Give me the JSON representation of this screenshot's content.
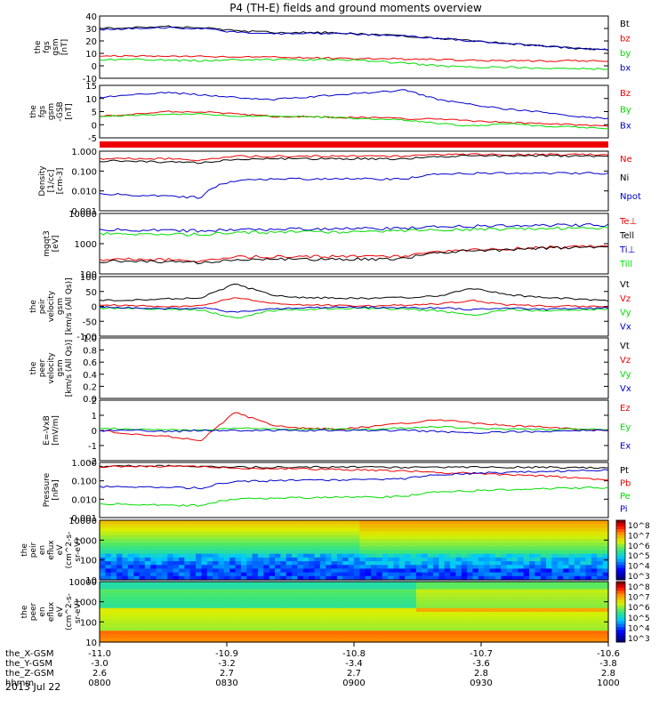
{
  "title": "P4 (TH-E) fields and ground moments overview",
  "date": "2013 Jul 22",
  "orbit": {
    "rows": [
      {
        "label": "the_X-GSM",
        "values": [
          "-11.0",
          "-10.9",
          "-10.8",
          "-10.7",
          "-10.6"
        ]
      },
      {
        "label": "the_Y-GSM",
        "values": [
          "-3.0",
          "-3.2",
          "-3.4",
          "-3.6",
          "-3.8"
        ]
      },
      {
        "label": "the_Z-GSM",
        "values": [
          "2.6",
          "2.7",
          "2.7",
          "2.8",
          "2.8"
        ]
      },
      {
        "label": "hhmm",
        "values": [
          "0800",
          "0830",
          "0900",
          "0930",
          "1000"
        ]
      }
    ]
  },
  "colors": {
    "black": "#000000",
    "red": "#ee0000",
    "green": "#00dd00",
    "blue": "#0000cc"
  },
  "chart_data": [
    {
      "type": "line",
      "ylabel": [
        "the",
        "fgs",
        "gsm",
        "[nT]"
      ],
      "ylim": [
        -10,
        40
      ],
      "ticks": [
        "40",
        "30",
        "20",
        "10",
        "0",
        "-10"
      ],
      "legend": [
        "Bt",
        "bz",
        "by",
        "bx"
      ],
      "series": [
        {
          "name": "Bt",
          "color": "#000000",
          "values": [
            30,
            31,
            31.5,
            31,
            28,
            27,
            27,
            26.5,
            25,
            24,
            22,
            20,
            18,
            16,
            14,
            13
          ]
        },
        {
          "name": "bz",
          "color": "#ee0000",
          "values": [
            8,
            8,
            8,
            7.5,
            7,
            7,
            6.5,
            6,
            6,
            5.5,
            5,
            4.5,
            4,
            4,
            4,
            4
          ]
        },
        {
          "name": "by",
          "color": "#00dd00",
          "values": [
            5,
            5,
            4.5,
            4,
            5,
            5,
            5,
            5,
            4,
            2,
            0,
            -1,
            -1,
            -2,
            -2,
            -3
          ]
        },
        {
          "name": "bx",
          "color": "#0000cc",
          "values": [
            29,
            30,
            30.5,
            30,
            27,
            26,
            26,
            26,
            25,
            24,
            22,
            20,
            18,
            16,
            14,
            13
          ]
        }
      ]
    },
    {
      "type": "line",
      "ylabel": [
        "the",
        "fgs",
        "gsm",
        "-GSB",
        "[nT]"
      ],
      "ylim": [
        -7,
        15
      ],
      "ticks": [
        "15",
        "10",
        "5",
        "0",
        "-5"
      ],
      "legend": [
        "Bz",
        "By",
        "Bx"
      ],
      "series": [
        {
          "name": "Bz",
          "color": "#ee0000",
          "values": [
            2,
            3,
            4,
            4,
            3,
            2,
            2,
            1.5,
            1.5,
            1,
            1,
            0,
            -0.5,
            -1,
            -1.5,
            -2
          ]
        },
        {
          "name": "By",
          "color": "#00dd00",
          "values": [
            2,
            2.5,
            3,
            3,
            2,
            2,
            2,
            1.5,
            1,
            0.5,
            -1,
            -2,
            -1,
            -2,
            -2.5,
            -3
          ]
        },
        {
          "name": "Bx",
          "color": "#0000cc",
          "values": [
            10,
            11,
            12,
            11,
            10,
            9,
            10,
            11,
            12,
            13,
            9,
            7,
            5,
            4,
            2,
            1
          ]
        }
      ]
    },
    {
      "type": "line",
      "ylabel": [
        "Density",
        "[1/cc]",
        "[cm-3]"
      ],
      "ylim": [
        0.001,
        1.5
      ],
      "log": true,
      "ticks": [
        "1.000",
        "0.100",
        "0.010",
        "0.001"
      ],
      "legend": [
        "Ne",
        "Ni",
        "Npot"
      ],
      "series": [
        {
          "name": "Ne",
          "color": "#ee0000",
          "values": [
            0.6,
            0.6,
            0.6,
            0.5,
            0.8,
            0.8,
            0.8,
            0.8,
            0.8,
            0.85,
            1.0,
            1.0,
            1.0,
            1.0,
            1.0,
            1.0
          ]
        },
        {
          "name": "Ni",
          "color": "#000000",
          "values": [
            0.45,
            0.45,
            0.4,
            0.35,
            0.55,
            0.6,
            0.6,
            0.6,
            0.6,
            0.6,
            0.8,
            0.85,
            0.85,
            0.85,
            0.85,
            0.85
          ]
        },
        {
          "name": "Npot",
          "color": "#0000cc",
          "values": [
            0.008,
            0.007,
            0.006,
            0.005,
            0.04,
            0.05,
            0.05,
            0.05,
            0.05,
            0.05,
            0.09,
            0.1,
            0.1,
            0.1,
            0.1,
            0.1
          ]
        }
      ]
    },
    {
      "type": "line",
      "ylabel": [
        "mgqt3",
        "[eV]"
      ],
      "ylim": [
        60,
        10000
      ],
      "log": true,
      "ticks": [
        "10000",
        "1000",
        "100"
      ],
      "legend": [
        "Te⊥",
        "Tell",
        "Ti⊥",
        "Till"
      ],
      "series": [
        {
          "name": "Te⊥",
          "color": "#ee0000",
          "values": [
            200,
            210,
            200,
            180,
            250,
            260,
            260,
            260,
            260,
            280,
            400,
            450,
            500,
            550,
            600,
            650
          ]
        },
        {
          "name": "Tell",
          "color": "#000000",
          "values": [
            170,
            180,
            170,
            150,
            200,
            210,
            210,
            210,
            210,
            230,
            380,
            420,
            470,
            520,
            570,
            620
          ]
        },
        {
          "name": "Ti⊥",
          "color": "#0000cc",
          "values": [
            2500,
            2500,
            2400,
            2300,
            2600,
            2600,
            2700,
            2700,
            2800,
            2900,
            3200,
            3400,
            3500,
            3600,
            3700,
            3800
          ]
        },
        {
          "name": "Till",
          "color": "#00dd00",
          "values": [
            1800,
            1800,
            1700,
            1700,
            2000,
            2000,
            2100,
            2100,
            2200,
            2300,
            2500,
            2600,
            2700,
            2800,
            2900,
            3000
          ]
        }
      ]
    },
    {
      "type": "line",
      "ylabel": [
        "the",
        "peir",
        "velocity",
        "gsm",
        "[km/s (All Qs)]"
      ],
      "ylim": [
        -100,
        100
      ],
      "ticks": [
        "100",
        "50",
        "0",
        "-50",
        "-100"
      ],
      "legend": [
        "Vt",
        "Vz",
        "Vy",
        "Vx"
      ],
      "series": [
        {
          "name": "Vt",
          "color": "#000000",
          "values": [
            20,
            22,
            25,
            30,
            75,
            40,
            30,
            28,
            26,
            30,
            35,
            60,
            40,
            30,
            25,
            20
          ]
        },
        {
          "name": "Vz",
          "color": "#ee0000",
          "values": [
            5,
            3,
            0,
            2,
            30,
            10,
            5,
            3,
            2,
            4,
            8,
            20,
            5,
            2,
            0,
            0
          ]
        },
        {
          "name": "Vy",
          "color": "#00dd00",
          "values": [
            -5,
            -8,
            -10,
            -12,
            -40,
            -15,
            -10,
            -8,
            -6,
            -10,
            -15,
            -30,
            -10,
            -15,
            -12,
            -10
          ]
        },
        {
          "name": "Vx",
          "color": "#0000cc",
          "values": [
            -2,
            -5,
            -8,
            -5,
            -20,
            -8,
            -5,
            -3,
            -3,
            -5,
            -5,
            -10,
            -5,
            -10,
            -8,
            -5
          ]
        }
      ]
    },
    {
      "type": "line",
      "ylabel": [
        "the",
        "peer",
        "velocity",
        "gsm",
        "[km/s (All Qs)]"
      ],
      "ylim": [
        0,
        1
      ],
      "ticks": [
        "1.0",
        "0.8",
        "0.6",
        "0.4",
        "0.2",
        "0.0"
      ],
      "legend": [
        "Vt",
        "Vz",
        "Vy",
        "Vx"
      ],
      "series": []
    },
    {
      "type": "line",
      "ylabel": [
        "E=-VxB",
        "[mV/m]"
      ],
      "ylim": [
        -2.5,
        2.5
      ],
      "ticks": [
        "2",
        "1",
        "0",
        "-1",
        "-2"
      ],
      "legend": [
        "Ez",
        "Ey",
        "Ex"
      ],
      "series": [
        {
          "name": "Ez",
          "color": "#ee0000",
          "values": [
            0,
            -0.3,
            -0.5,
            -0.8,
            1.5,
            0.5,
            0.2,
            0.1,
            0.3,
            0.6,
            0.9,
            0.6,
            0.4,
            0.3,
            0.1,
            0
          ]
        },
        {
          "name": "Ey",
          "color": "#00dd00",
          "values": [
            0.2,
            0.1,
            0.1,
            0,
            0.2,
            0.1,
            0.1,
            0.1,
            0.1,
            0.2,
            0.3,
            0.2,
            0.1,
            0.1,
            0.1,
            0.1
          ]
        },
        {
          "name": "Ex",
          "color": "#0000cc",
          "values": [
            0,
            0,
            -0.1,
            0,
            0,
            0,
            0,
            0,
            0,
            0,
            -0.1,
            -0.2,
            -0.1,
            -0.1,
            0,
            0
          ]
        }
      ]
    },
    {
      "type": "line",
      "ylabel": [
        "Pressure",
        "[nPa]"
      ],
      "ylim": [
        0.001,
        1.5
      ],
      "log": true,
      "ticks": [
        "1.000",
        "0.100",
        "0.010",
        "0.001"
      ],
      "legend": [
        "Pt",
        "Pb",
        "Pe",
        "Pi"
      ],
      "series": [
        {
          "name": "Pt",
          "color": "#000000",
          "values": [
            0.9,
            0.95,
            0.95,
            0.9,
            0.8,
            0.8,
            0.8,
            0.8,
            0.8,
            0.8,
            0.8,
            0.8,
            0.8,
            0.8,
            0.75,
            0.75
          ]
        },
        {
          "name": "Pb",
          "color": "#ee0000",
          "values": [
            0.85,
            0.9,
            0.9,
            0.85,
            0.7,
            0.65,
            0.65,
            0.6,
            0.55,
            0.5,
            0.4,
            0.35,
            0.3,
            0.25,
            0.2,
            0.15
          ]
        },
        {
          "name": "Pe",
          "color": "#00dd00",
          "values": [
            0.006,
            0.006,
            0.005,
            0.005,
            0.012,
            0.013,
            0.014,
            0.015,
            0.015,
            0.017,
            0.03,
            0.035,
            0.04,
            0.045,
            0.05,
            0.055
          ]
        },
        {
          "name": "Pi",
          "color": "#0000cc",
          "values": [
            0.06,
            0.06,
            0.055,
            0.05,
            0.12,
            0.13,
            0.14,
            0.15,
            0.16,
            0.17,
            0.3,
            0.35,
            0.4,
            0.45,
            0.5,
            0.55
          ]
        }
      ]
    },
    {
      "type": "heatmap",
      "ylabel": [
        "the",
        "peir",
        "en",
        "eflux",
        "eV",
        "(cm^2-s-",
        "sr-eV)"
      ],
      "ticks": [
        "10000",
        "1000",
        "100",
        "10"
      ],
      "colorbar_ticks": [
        "10^8",
        "10^7",
        "10^6",
        "10^5",
        "10^4",
        "10^3"
      ]
    },
    {
      "type": "heatmap",
      "ylabel": [
        "the",
        "peer",
        "en",
        "eflux",
        "eV",
        "(cm^2-s-",
        "sr-eV)"
      ],
      "ticks": [
        "10000",
        "1000",
        "100",
        "10"
      ],
      "colorbar_ticks": [
        "10^8",
        "10^7",
        "10^6",
        "10^5",
        "10^4",
        "10^3"
      ]
    }
  ]
}
